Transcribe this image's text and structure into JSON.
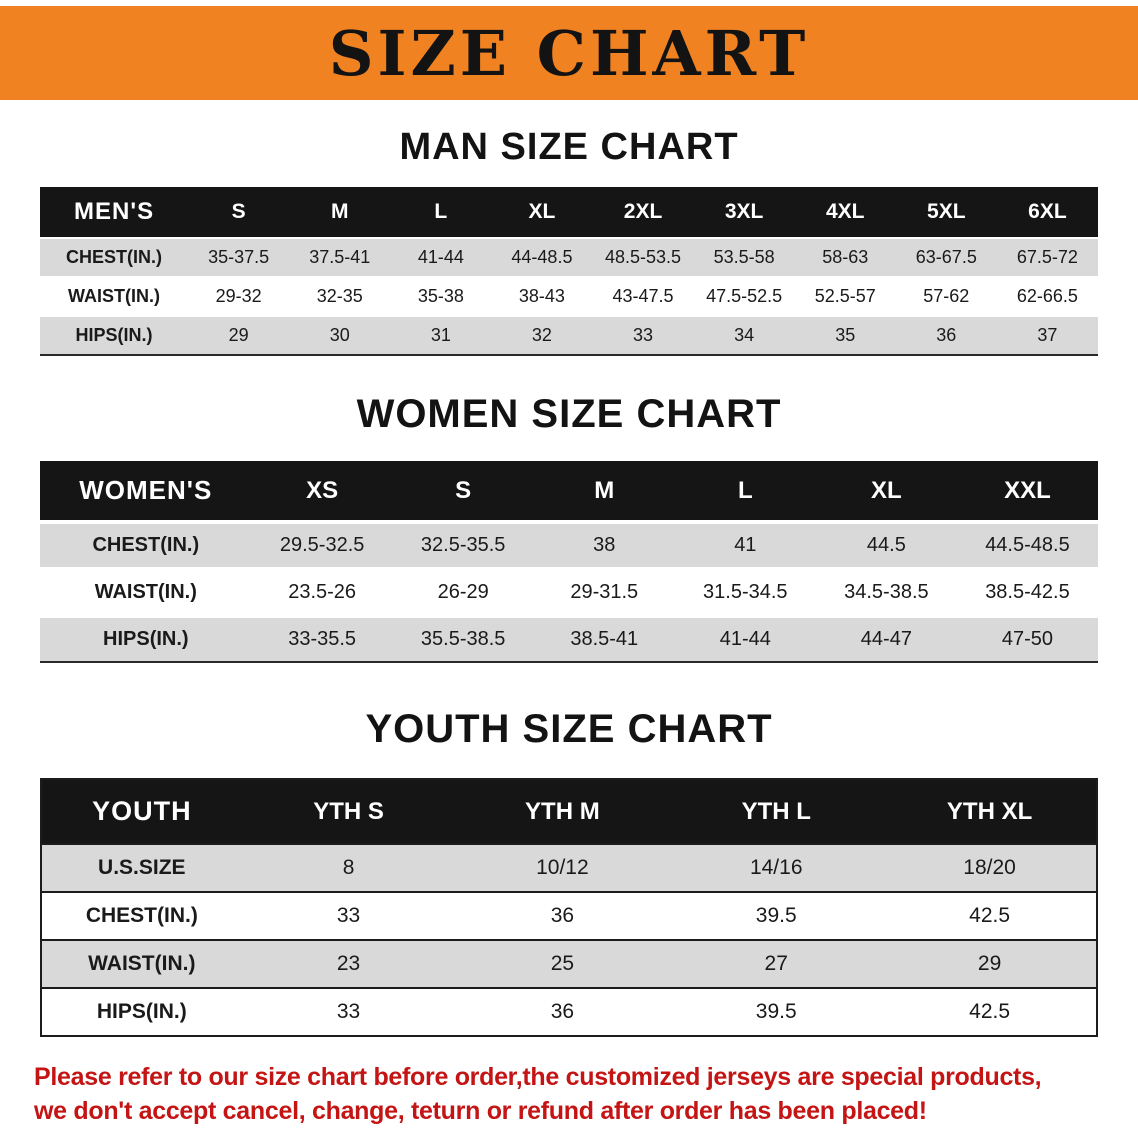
{
  "banner": {
    "title": "SIZE CHART"
  },
  "theme": {
    "banner_orange": "#F08222",
    "table_header_black": "#151515",
    "row_gray": "#D9D9D9",
    "notice_red": "#C41414"
  },
  "sections": [
    {
      "id": "men",
      "heading": "MAN SIZE CHART",
      "table": {
        "header": [
          "MEN'S",
          "S",
          "M",
          "L",
          "XL",
          "2XL",
          "3XL",
          "4XL",
          "5XL",
          "6XL"
        ],
        "rows": [
          [
            "CHEST(IN.)",
            "35-37.5",
            "37.5-41",
            "41-44",
            "44-48.5",
            "48.5-53.5",
            "53.5-58",
            "58-63",
            "63-67.5",
            "67.5-72"
          ],
          [
            "WAIST(IN.)",
            "29-32",
            "32-35",
            "35-38",
            "38-43",
            "43-47.5",
            "47.5-52.5",
            "52.5-57",
            "57-62",
            "62-66.5"
          ],
          [
            "HIPS(IN.)",
            "29",
            "30",
            "31",
            "32",
            "33",
            "34",
            "35",
            "36",
            "37"
          ]
        ]
      }
    },
    {
      "id": "women",
      "heading": "WOMEN SIZE CHART",
      "table": {
        "header": [
          "WOMEN'S",
          "XS",
          "S",
          "M",
          "L",
          "XL",
          "XXL"
        ],
        "rows": [
          [
            "CHEST(IN.)",
            "29.5-32.5",
            "32.5-35.5",
            "38",
            "41",
            "44.5",
            "44.5-48.5"
          ],
          [
            "WAIST(IN.)",
            "23.5-26",
            "26-29",
            "29-31.5",
            "31.5-34.5",
            "34.5-38.5",
            "38.5-42.5"
          ],
          [
            "HIPS(IN.)",
            "33-35.5",
            "35.5-38.5",
            "38.5-41",
            "41-44",
            "44-47",
            "47-50"
          ]
        ]
      }
    },
    {
      "id": "youth",
      "heading": "YOUTH SIZE CHART",
      "table": {
        "header": [
          "YOUTH",
          "YTH S",
          "YTH M",
          "YTH L",
          "YTH XL"
        ],
        "rows": [
          [
            "U.S.SIZE",
            "8",
            "10/12",
            "14/16",
            "18/20"
          ],
          [
            "CHEST(IN.)",
            "33",
            "36",
            "39.5",
            "42.5"
          ],
          [
            "WAIST(IN.)",
            "23",
            "25",
            "27",
            "29"
          ],
          [
            "HIPS(IN.)",
            "33",
            "36",
            "39.5",
            "42.5"
          ]
        ]
      }
    }
  ],
  "notice": {
    "line1": "Please refer to our size chart before order,the customized jerseys are special products,",
    "line2": "we don't accept cancel, change, teturn or refund after order has been placed!"
  }
}
